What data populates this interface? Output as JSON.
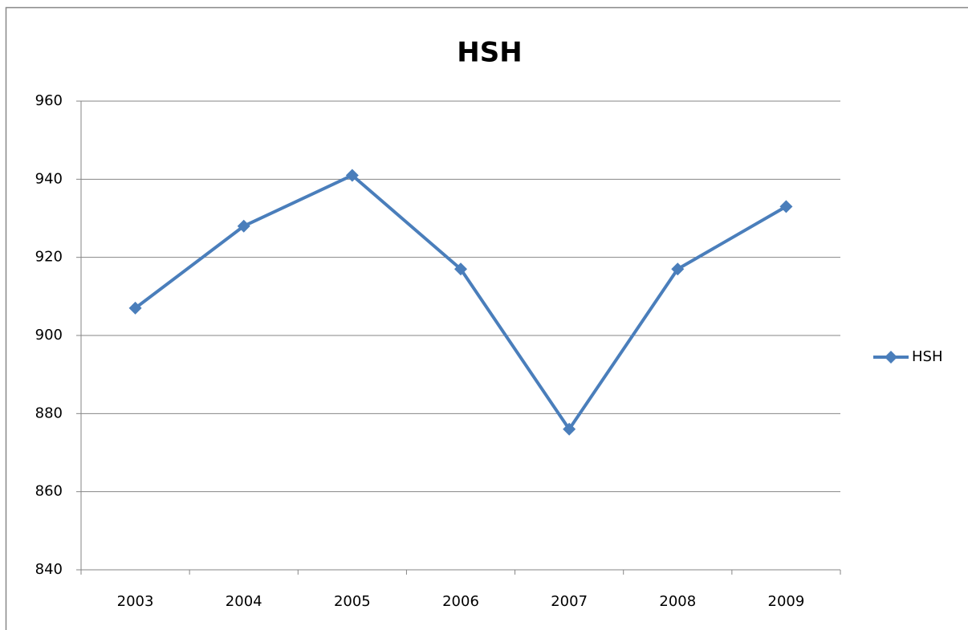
{
  "chart_data": {
    "type": "line",
    "title": "HSH",
    "categories": [
      "2003",
      "2004",
      "2005",
      "2006",
      "2007",
      "2008",
      "2009"
    ],
    "series": [
      {
        "name": "HSH",
        "color": "#4a7ebb",
        "values": [
          907,
          928,
          941,
          917,
          876,
          917,
          933
        ]
      }
    ],
    "ylim": [
      840,
      960
    ],
    "yticks": [
      840,
      860,
      880,
      900,
      920,
      940,
      960
    ],
    "grid": true,
    "legend": "right"
  }
}
